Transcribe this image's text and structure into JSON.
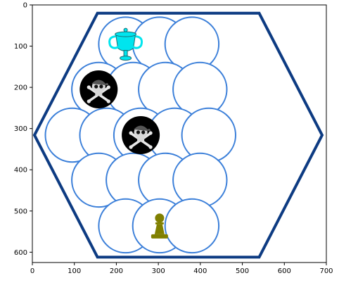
{
  "axes": {
    "x_ticks": [
      "0",
      "100",
      "200",
      "300",
      "400",
      "500",
      "600",
      "700"
    ],
    "y_ticks": [
      "0",
      "100",
      "200",
      "300",
      "400",
      "500",
      "600"
    ],
    "xlim": [
      0,
      700
    ],
    "ylim": [
      625,
      0
    ]
  },
  "board": {
    "shape": "hexagon",
    "border_color": "#0d3b82",
    "cell_color": "#3b7fd9",
    "hexagon_vertices": [
      [
        155,
        20
      ],
      [
        540,
        20
      ],
      [
        690,
        316
      ],
      [
        540,
        612
      ],
      [
        155,
        612
      ],
      [
        5,
        316
      ]
    ],
    "rows": [
      {
        "y": 95,
        "x": [
          222,
          303,
          380
        ]
      },
      {
        "y": 205,
        "x": [
          158,
          240,
          317,
          399
        ]
      },
      {
        "y": 316,
        "x": [
          95,
          177,
          258,
          339,
          420
        ]
      },
      {
        "y": 425,
        "x": [
          158,
          240,
          317,
          399
        ]
      },
      {
        "y": 536,
        "x": [
          222,
          303,
          380
        ]
      }
    ],
    "cell_radius": 64
  },
  "pieces": [
    {
      "kind": "trophy",
      "icon": "trophy-icon",
      "color": "#00e5ee",
      "row": 0,
      "col": 0
    },
    {
      "kind": "pirate",
      "icon": "skull-crossbones-icon",
      "color": "#000000",
      "row": 1,
      "col": 0
    },
    {
      "kind": "pirate",
      "icon": "skull-crossbones-icon",
      "color": "#000000",
      "row": 2,
      "col": 2
    },
    {
      "kind": "pawn",
      "icon": "pawn-icon",
      "color": "#808000",
      "row": 4,
      "col": 1
    }
  ]
}
